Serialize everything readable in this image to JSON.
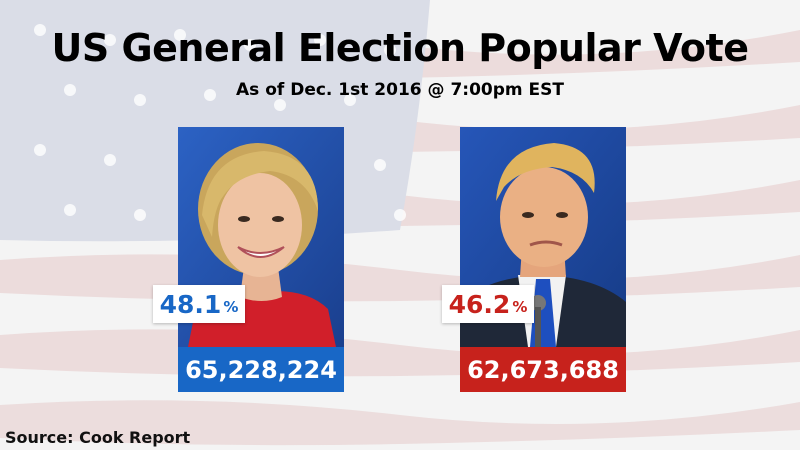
{
  "header": {
    "title": "US General Election Popular Vote",
    "subtitle": "As of Dec. 1st 2016 @ 7:00pm EST"
  },
  "candidates": [
    {
      "percent": "48.1",
      "percent_symbol": "%",
      "votes": "65,228,224",
      "color": "#1867c6"
    },
    {
      "percent": "46.2",
      "percent_symbol": "%",
      "votes": "62,673,688",
      "color": "#c7221c"
    }
  ],
  "footer": {
    "source": "Source: Cook Report"
  },
  "icons": [
    "american-flag-background",
    "candidate-photo-left",
    "candidate-photo-right"
  ]
}
